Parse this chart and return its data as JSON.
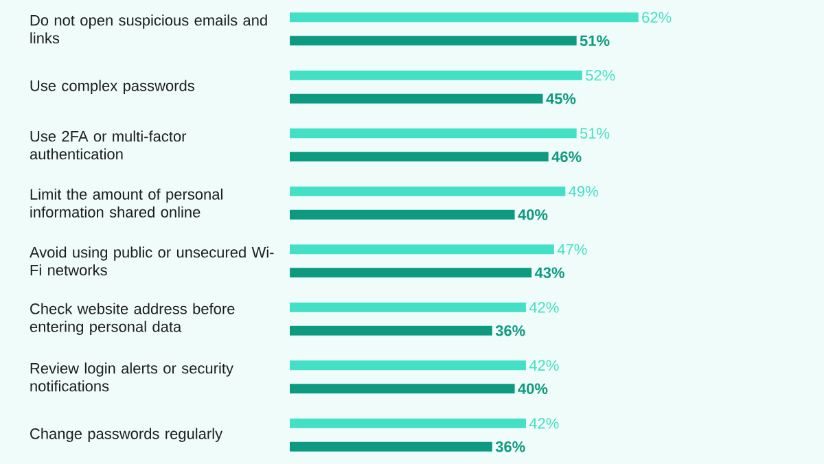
{
  "chart_data": {
    "type": "bar",
    "orientation": "horizontal",
    "xlim": [
      0,
      95
    ],
    "categories": [
      "Do not open suspicious emails and links",
      "Use complex passwords",
      "Use 2FA or multi-factor authentication",
      "Limit the amount of personal information shared online",
      "Avoid using public or unsecured Wi-Fi networks",
      "Check website address before entering personal data",
      "Review login alerts or security notifications",
      "Change passwords regularly"
    ],
    "series": [
      {
        "color": "#43e0c5",
        "values": [
          62,
          52,
          51,
          49,
          47,
          42,
          42,
          42
        ],
        "value_labels": [
          "62%",
          "52%",
          "51%",
          "49%",
          "47%",
          "42%",
          "42%",
          "42%"
        ]
      },
      {
        "color": "#0e9a80",
        "values": [
          51,
          45,
          46,
          40,
          43,
          36,
          40,
          36
        ],
        "value_labels": [
          "51%",
          "45%",
          "46%",
          "40%",
          "43%",
          "36%",
          "40%",
          "36%"
        ]
      }
    ]
  }
}
